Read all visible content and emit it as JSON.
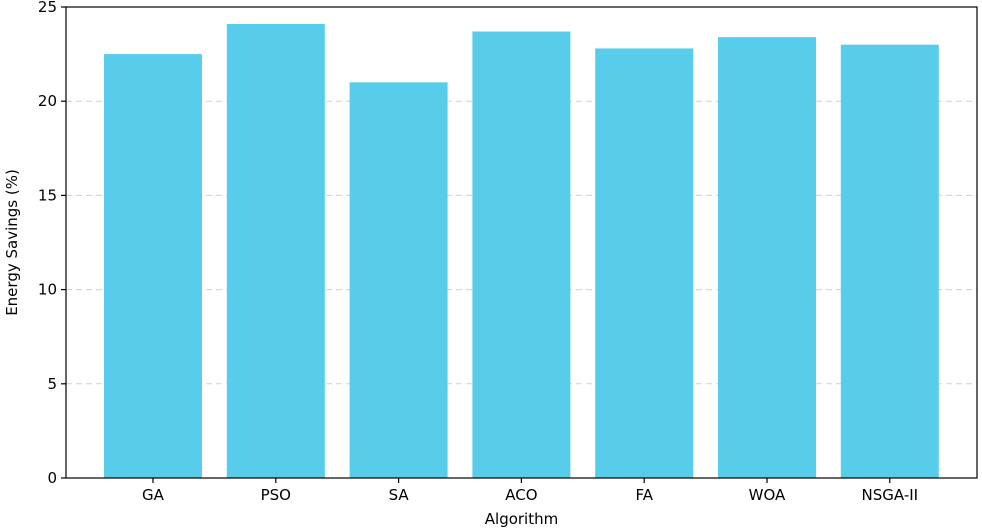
{
  "chart_data": {
    "type": "bar",
    "categories": [
      "GA",
      "PSO",
      "SA",
      "ACO",
      "FA",
      "WOA",
      "NSGA-II"
    ],
    "values": [
      22.5,
      24.1,
      21.0,
      23.7,
      22.8,
      23.4,
      23.0
    ],
    "title": "",
    "xlabel": "Algorithm",
    "ylabel": "Energy Savings (%)",
    "ylim": [
      0,
      25
    ],
    "yticks": [
      0,
      5,
      10,
      15,
      20,
      25
    ],
    "grid": true,
    "bar_color": "#57cdeb"
  }
}
